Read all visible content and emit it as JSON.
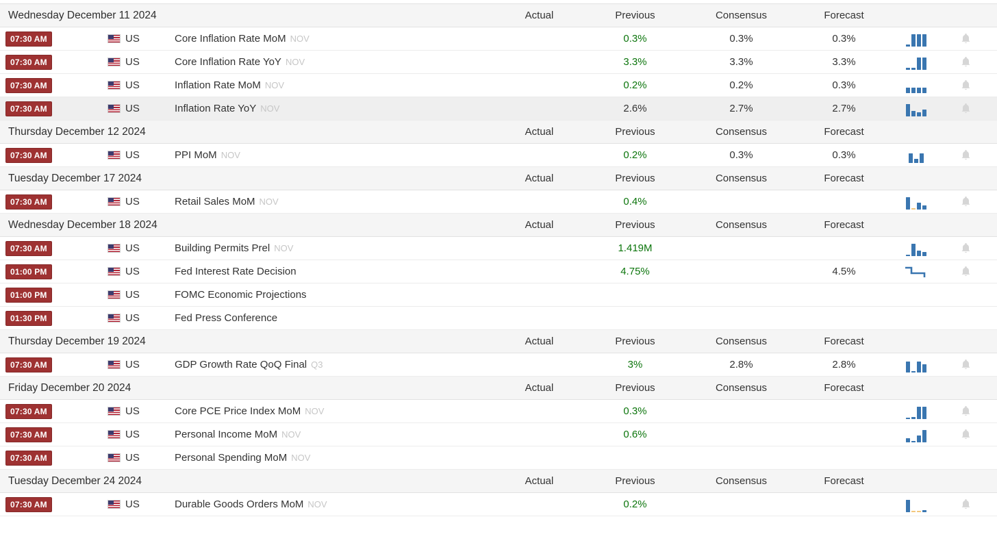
{
  "colors": {
    "badge_bg": "#9e3232",
    "badge_border": "#852828",
    "value_green": "#0c750c",
    "bar_blue": "#3a76b0",
    "bar_orange": "#f3c77d",
    "bell_gray": "#d6d6d6"
  },
  "column_headers": {
    "actual": "Actual",
    "previous": "Previous",
    "consensus": "Consensus",
    "forecast": "Forecast"
  },
  "sections": [
    {
      "date": "Wednesday December 11 2024",
      "events": [
        {
          "time": "07:30 AM",
          "country": "US",
          "name": "Core Inflation Rate MoM",
          "ref": "NOV",
          "actual": "",
          "previous": "0.3%",
          "previous_green": true,
          "consensus": "0.3%",
          "forecast": "0.3%",
          "chart": {
            "type": "bars",
            "bars": [
              3,
              18,
              18,
              18
            ]
          },
          "bell": true,
          "highlighted": false
        },
        {
          "time": "07:30 AM",
          "country": "US",
          "name": "Core Inflation Rate YoY",
          "ref": "NOV",
          "actual": "",
          "previous": "3.3%",
          "previous_green": true,
          "consensus": "3.3%",
          "forecast": "3.3%",
          "chart": {
            "type": "bars",
            "bars": [
              3,
              3,
              18,
              18
            ]
          },
          "bell": true,
          "highlighted": false
        },
        {
          "time": "07:30 AM",
          "country": "US",
          "name": "Inflation Rate MoM",
          "ref": "NOV",
          "actual": "",
          "previous": "0.2%",
          "previous_green": true,
          "consensus": "0.2%",
          "forecast": "0.3%",
          "chart": {
            "type": "bars",
            "bars": [
              8,
              8,
              8,
              8
            ]
          },
          "bell": true,
          "highlighted": false
        },
        {
          "time": "07:30 AM",
          "country": "US",
          "name": "Inflation Rate YoY",
          "ref": "NOV",
          "actual": "",
          "previous": "2.6%",
          "previous_green": false,
          "consensus": "2.7%",
          "forecast": "2.7%",
          "chart": {
            "type": "bars",
            "bars": [
              18,
              8,
              6,
              10
            ]
          },
          "bell": true,
          "highlighted": true
        }
      ]
    },
    {
      "date": "Thursday December 12 2024",
      "events": [
        {
          "time": "07:30 AM",
          "country": "US",
          "name": "PPI MoM",
          "ref": "NOV",
          "actual": "",
          "previous": "0.2%",
          "previous_green": true,
          "consensus": "0.3%",
          "forecast": "0.3%",
          "chart": {
            "type": "bars",
            "bars": [
              14,
              6,
              14
            ]
          },
          "bell": true,
          "highlighted": false
        }
      ]
    },
    {
      "date": "Tuesday December 17 2024",
      "events": [
        {
          "time": "07:30 AM",
          "country": "US",
          "name": "Retail Sales MoM",
          "ref": "NOV",
          "actual": "",
          "previous": "0.4%",
          "previous_green": true,
          "consensus": "",
          "forecast": "",
          "chart": {
            "type": "bars",
            "bars": [
              18,
              -2,
              10,
              6
            ]
          },
          "bell": true,
          "highlighted": false
        }
      ]
    },
    {
      "date": "Wednesday December 18 2024",
      "events": [
        {
          "time": "07:30 AM",
          "country": "US",
          "name": "Building Permits Prel",
          "ref": "NOV",
          "actual": "",
          "previous": "1.419M",
          "previous_green": true,
          "consensus": "",
          "forecast": "",
          "chart": {
            "type": "bars",
            "bars": [
              2,
              18,
              8,
              6
            ]
          },
          "bell": true,
          "highlighted": false
        },
        {
          "time": "01:00 PM",
          "country": "US",
          "name": "Fed Interest Rate Decision",
          "ref": "",
          "actual": "",
          "previous": "4.75%",
          "previous_green": true,
          "consensus": "",
          "forecast": "4.5%",
          "chart": {
            "type": "step-line"
          },
          "bell": true,
          "highlighted": false
        },
        {
          "time": "01:00 PM",
          "country": "US",
          "name": "FOMC Economic Projections",
          "ref": "",
          "actual": "",
          "previous": "",
          "previous_green": false,
          "consensus": "",
          "forecast": "",
          "chart": null,
          "bell": false,
          "highlighted": false
        },
        {
          "time": "01:30 PM",
          "country": "US",
          "name": "Fed Press Conference",
          "ref": "",
          "actual": "",
          "previous": "",
          "previous_green": false,
          "consensus": "",
          "forecast": "",
          "chart": null,
          "bell": false,
          "highlighted": false
        }
      ]
    },
    {
      "date": "Thursday December 19 2024",
      "events": [
        {
          "time": "07:30 AM",
          "country": "US",
          "name": "GDP Growth Rate QoQ Final",
          "ref": "Q3",
          "actual": "",
          "previous": "3%",
          "previous_green": true,
          "consensus": "2.8%",
          "forecast": "2.8%",
          "chart": {
            "type": "bars",
            "bars": [
              16,
              2,
              16,
              12
            ]
          },
          "bell": true,
          "highlighted": false
        }
      ]
    },
    {
      "date": "Friday December 20 2024",
      "events": [
        {
          "time": "07:30 AM",
          "country": "US",
          "name": "Core PCE Price Index MoM",
          "ref": "NOV",
          "actual": "",
          "previous": "0.3%",
          "previous_green": true,
          "consensus": "",
          "forecast": "",
          "chart": {
            "type": "bars",
            "bars": [
              2,
              3,
              18,
              18
            ]
          },
          "bell": true,
          "highlighted": false
        },
        {
          "time": "07:30 AM",
          "country": "US",
          "name": "Personal Income MoM",
          "ref": "NOV",
          "actual": "",
          "previous": "0.6%",
          "previous_green": true,
          "consensus": "",
          "forecast": "",
          "chart": {
            "type": "bars",
            "bars": [
              6,
              2,
              10,
              18
            ]
          },
          "bell": true,
          "highlighted": false
        },
        {
          "time": "07:30 AM",
          "country": "US",
          "name": "Personal Spending MoM",
          "ref": "NOV",
          "actual": "",
          "previous": "",
          "previous_green": false,
          "consensus": "",
          "forecast": "",
          "chart": null,
          "bell": false,
          "highlighted": false
        }
      ]
    },
    {
      "date": "Tuesday December 24 2024",
      "events": [
        {
          "time": "07:30 AM",
          "country": "US",
          "name": "Durable Goods Orders MoM",
          "ref": "NOV",
          "actual": "",
          "previous": "0.2%",
          "previous_green": true,
          "consensus": "",
          "forecast": "",
          "chart": {
            "type": "bars",
            "bars": [
              18,
              -2,
              -2,
              3
            ]
          },
          "bell": true,
          "highlighted": false
        }
      ]
    }
  ]
}
